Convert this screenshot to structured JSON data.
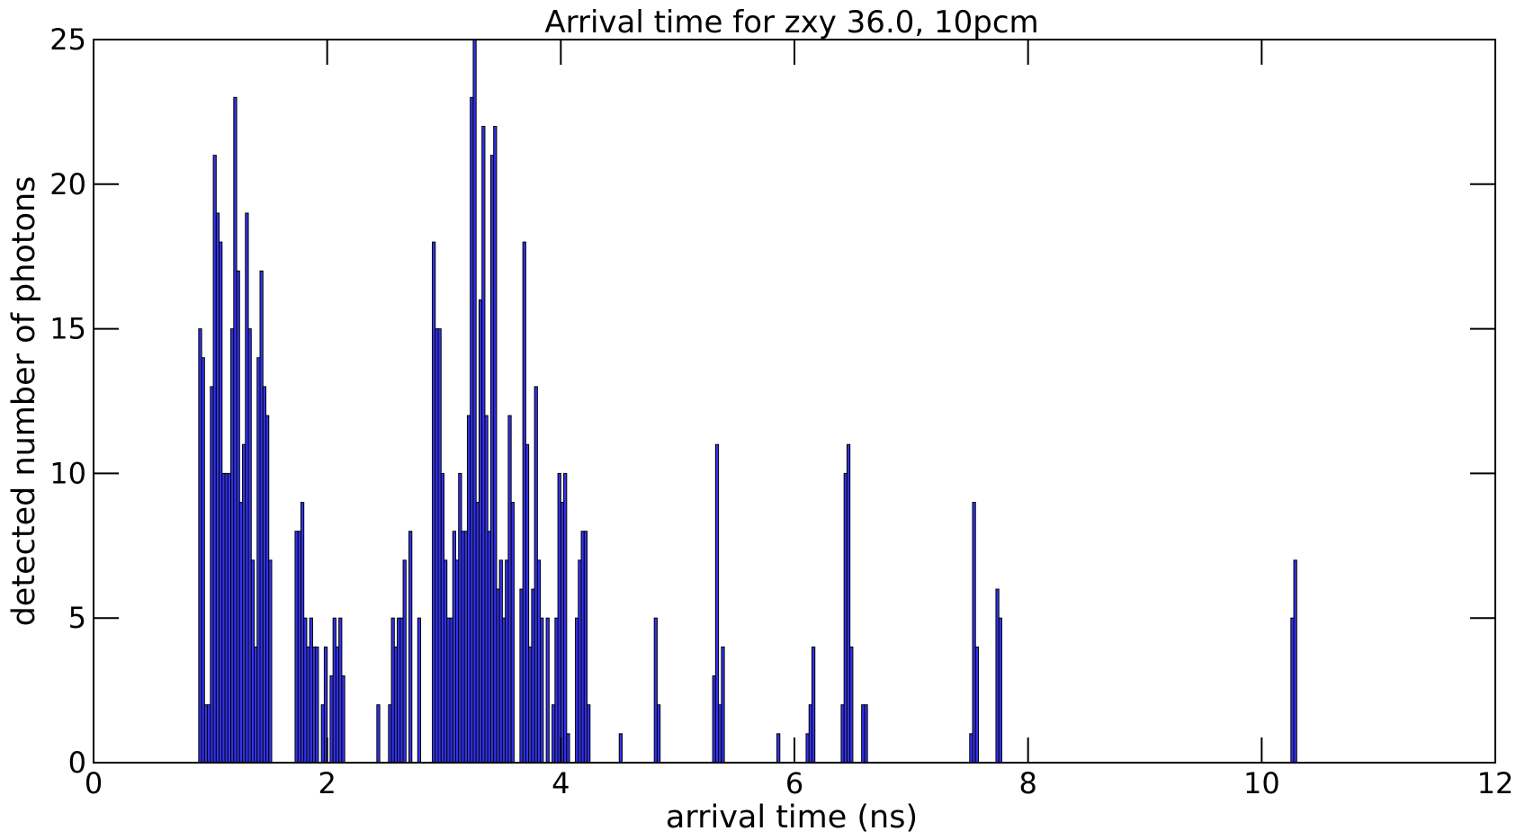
{
  "chart_data": {
    "type": "bar",
    "title": "Arrival time for zxy 36.0, 10pcm",
    "xlabel": "arrival time (ns)",
    "ylabel": "detected number of photons",
    "xlim": [
      0,
      12
    ],
    "ylim": [
      0,
      25
    ],
    "x_ticks": [
      "0",
      "2",
      "4",
      "6",
      "8",
      "10",
      "12"
    ],
    "y_ticks": [
      "0",
      "5",
      "10",
      "15",
      "20",
      "25"
    ],
    "bin_width": 0.025,
    "bar_color": "#3333ee",
    "grid": false,
    "bins": [
      {
        "x": 0.9,
        "y": 15
      },
      {
        "x": 0.925,
        "y": 14
      },
      {
        "x": 0.95,
        "y": 2
      },
      {
        "x": 0.975,
        "y": 2
      },
      {
        "x": 1.0,
        "y": 13
      },
      {
        "x": 1.025,
        "y": 21
      },
      {
        "x": 1.05,
        "y": 19
      },
      {
        "x": 1.075,
        "y": 18
      },
      {
        "x": 1.1,
        "y": 10
      },
      {
        "x": 1.125,
        "y": 10
      },
      {
        "x": 1.15,
        "y": 10
      },
      {
        "x": 1.175,
        "y": 15
      },
      {
        "x": 1.2,
        "y": 23
      },
      {
        "x": 1.225,
        "y": 17
      },
      {
        "x": 1.25,
        "y": 9
      },
      {
        "x": 1.275,
        "y": 11
      },
      {
        "x": 1.3,
        "y": 19
      },
      {
        "x": 1.325,
        "y": 15
      },
      {
        "x": 1.35,
        "y": 7
      },
      {
        "x": 1.375,
        "y": 4
      },
      {
        "x": 1.4,
        "y": 14
      },
      {
        "x": 1.425,
        "y": 17
      },
      {
        "x": 1.45,
        "y": 13
      },
      {
        "x": 1.475,
        "y": 12
      },
      {
        "x": 1.5,
        "y": 7
      },
      {
        "x": 1.725,
        "y": 8
      },
      {
        "x": 1.75,
        "y": 8
      },
      {
        "x": 1.775,
        "y": 9
      },
      {
        "x": 1.8,
        "y": 5
      },
      {
        "x": 1.825,
        "y": 4
      },
      {
        "x": 1.85,
        "y": 5
      },
      {
        "x": 1.875,
        "y": 4
      },
      {
        "x": 1.9,
        "y": 4
      },
      {
        "x": 1.95,
        "y": 2
      },
      {
        "x": 1.975,
        "y": 4
      },
      {
        "x": 2.025,
        "y": 3
      },
      {
        "x": 2.05,
        "y": 5
      },
      {
        "x": 2.075,
        "y": 4
      },
      {
        "x": 2.1,
        "y": 5
      },
      {
        "x": 2.125,
        "y": 3
      },
      {
        "x": 2.425,
        "y": 2
      },
      {
        "x": 2.525,
        "y": 2
      },
      {
        "x": 2.55,
        "y": 5
      },
      {
        "x": 2.575,
        "y": 4
      },
      {
        "x": 2.6,
        "y": 5
      },
      {
        "x": 2.625,
        "y": 5
      },
      {
        "x": 2.65,
        "y": 7
      },
      {
        "x": 2.7,
        "y": 8
      },
      {
        "x": 2.775,
        "y": 5
      },
      {
        "x": 2.9,
        "y": 18
      },
      {
        "x": 2.925,
        "y": 15
      },
      {
        "x": 2.95,
        "y": 15
      },
      {
        "x": 2.975,
        "y": 10
      },
      {
        "x": 3.0,
        "y": 7
      },
      {
        "x": 3.025,
        "y": 5
      },
      {
        "x": 3.05,
        "y": 5
      },
      {
        "x": 3.075,
        "y": 8
      },
      {
        "x": 3.1,
        "y": 7
      },
      {
        "x": 3.125,
        "y": 10
      },
      {
        "x": 3.15,
        "y": 8
      },
      {
        "x": 3.175,
        "y": 8
      },
      {
        "x": 3.2,
        "y": 12
      },
      {
        "x": 3.225,
        "y": 23
      },
      {
        "x": 3.25,
        "y": 25
      },
      {
        "x": 3.275,
        "y": 9
      },
      {
        "x": 3.3,
        "y": 16
      },
      {
        "x": 3.325,
        "y": 22
      },
      {
        "x": 3.35,
        "y": 12
      },
      {
        "x": 3.375,
        "y": 8
      },
      {
        "x": 3.4,
        "y": 21
      },
      {
        "x": 3.425,
        "y": 22
      },
      {
        "x": 3.45,
        "y": 6
      },
      {
        "x": 3.475,
        "y": 7
      },
      {
        "x": 3.5,
        "y": 5
      },
      {
        "x": 3.525,
        "y": 7
      },
      {
        "x": 3.55,
        "y": 12
      },
      {
        "x": 3.575,
        "y": 9
      },
      {
        "x": 3.65,
        "y": 6
      },
      {
        "x": 3.675,
        "y": 18
      },
      {
        "x": 3.7,
        "y": 11
      },
      {
        "x": 3.725,
        "y": 4
      },
      {
        "x": 3.75,
        "y": 6
      },
      {
        "x": 3.775,
        "y": 13
      },
      {
        "x": 3.8,
        "y": 7
      },
      {
        "x": 3.825,
        "y": 5
      },
      {
        "x": 3.875,
        "y": 5
      },
      {
        "x": 3.925,
        "y": 2
      },
      {
        "x": 3.95,
        "y": 5
      },
      {
        "x": 3.975,
        "y": 10
      },
      {
        "x": 4.0,
        "y": 9
      },
      {
        "x": 4.025,
        "y": 10
      },
      {
        "x": 4.05,
        "y": 1
      },
      {
        "x": 4.125,
        "y": 5
      },
      {
        "x": 4.15,
        "y": 7
      },
      {
        "x": 4.175,
        "y": 8
      },
      {
        "x": 4.2,
        "y": 8
      },
      {
        "x": 4.225,
        "y": 2
      },
      {
        "x": 4.5,
        "y": 1
      },
      {
        "x": 4.8,
        "y": 5
      },
      {
        "x": 4.825,
        "y": 2
      },
      {
        "x": 5.3,
        "y": 3
      },
      {
        "x": 5.325,
        "y": 11
      },
      {
        "x": 5.35,
        "y": 2
      },
      {
        "x": 5.375,
        "y": 4
      },
      {
        "x": 5.85,
        "y": 1
      },
      {
        "x": 6.1,
        "y": 1
      },
      {
        "x": 6.125,
        "y": 2
      },
      {
        "x": 6.15,
        "y": 4
      },
      {
        "x": 6.4,
        "y": 2
      },
      {
        "x": 6.425,
        "y": 10
      },
      {
        "x": 6.45,
        "y": 11
      },
      {
        "x": 6.475,
        "y": 4
      },
      {
        "x": 6.575,
        "y": 2
      },
      {
        "x": 6.6,
        "y": 2
      },
      {
        "x": 7.5,
        "y": 1
      },
      {
        "x": 7.525,
        "y": 9
      },
      {
        "x": 7.55,
        "y": 4
      },
      {
        "x": 7.725,
        "y": 6
      },
      {
        "x": 7.75,
        "y": 5
      },
      {
        "x": 10.25,
        "y": 5
      },
      {
        "x": 10.275,
        "y": 7
      }
    ]
  }
}
